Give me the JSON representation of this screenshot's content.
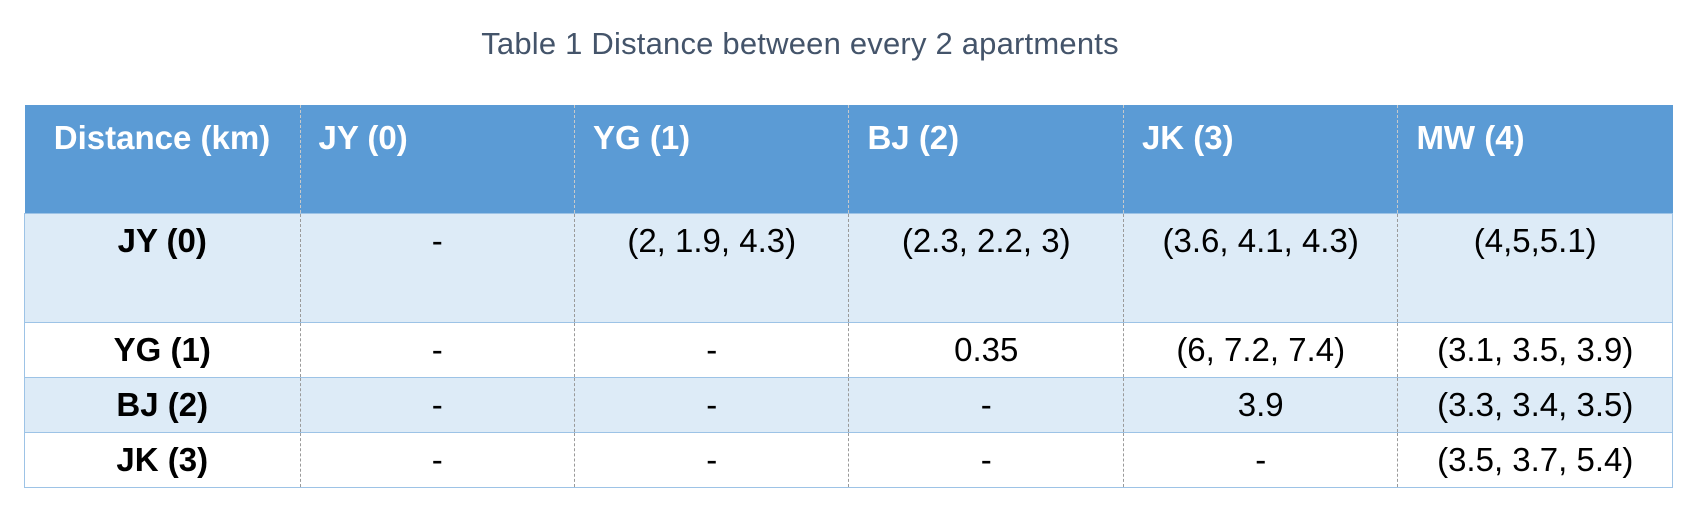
{
  "caption": "Table 1 Distance between every 2 apartments",
  "table": {
    "corner_header": "Distance (km)",
    "columns": [
      "JY (0)",
      "YG (1)",
      "BJ (2)",
      "JK (3)",
      "MW (4)"
    ],
    "rows": [
      {
        "label": "JY (0)",
        "cells": [
          "-",
          "(2, 1.9, 4.3)",
          "(2.3, 2.2, 3)",
          "(3.6, 4.1, 4.3)",
          "(4,5,5.1)"
        ]
      },
      {
        "label": "YG (1)",
        "cells": [
          "-",
          "-",
          "0.35",
          "(6, 7.2, 7.4)",
          "(3.1, 3.5, 3.9)"
        ]
      },
      {
        "label": "BJ (2)",
        "cells": [
          "-",
          "-",
          "-",
          "3.9",
          "(3.3, 3.4, 3.5)"
        ]
      },
      {
        "label": "JK (3)",
        "cells": [
          "-",
          "-",
          "-",
          "-",
          "(3.5, 3.7, 5.4)"
        ]
      }
    ]
  },
  "colors": {
    "header_bg": "#5b9bd5",
    "band_bg": "#ddebf7",
    "caption_text": "#44546a"
  }
}
